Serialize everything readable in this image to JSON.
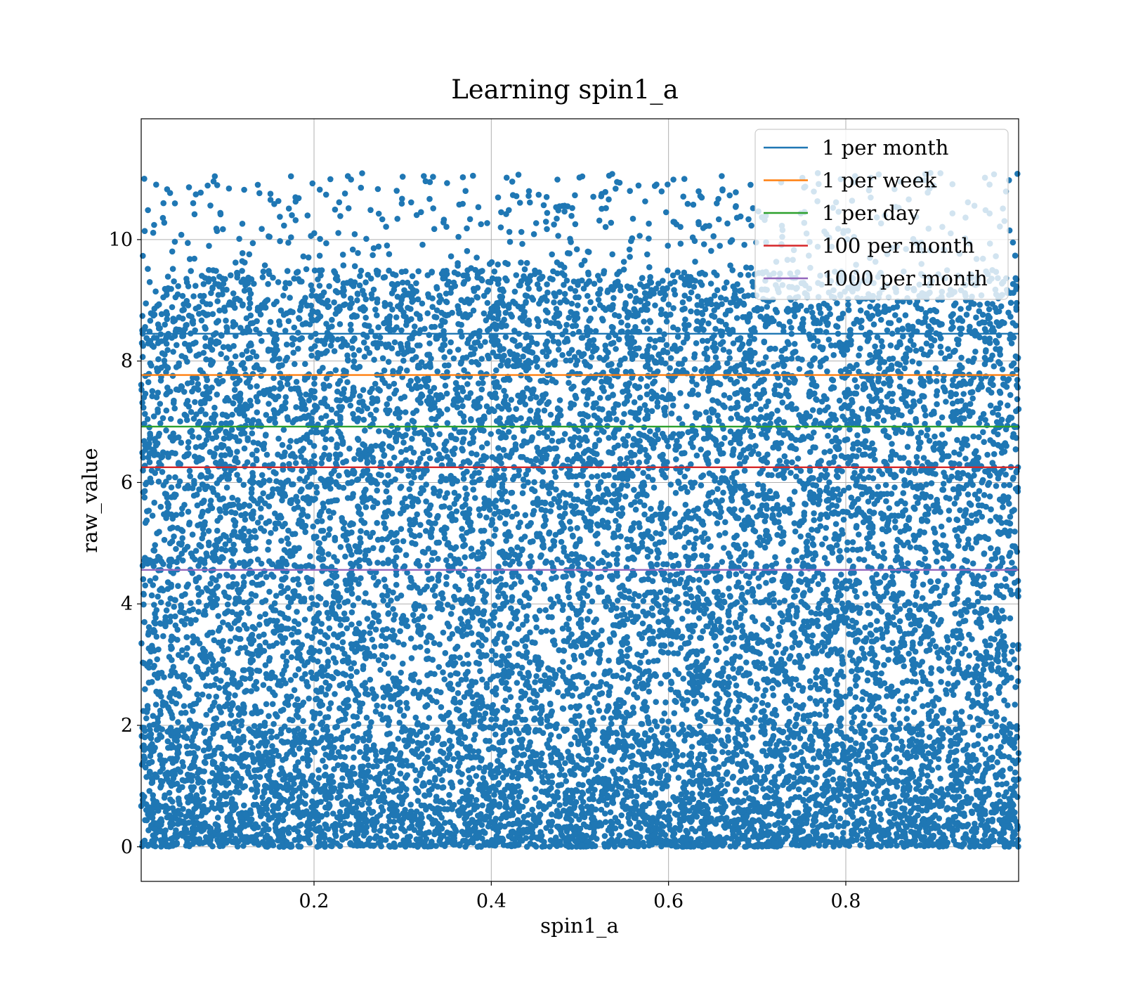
{
  "chart_data": {
    "type": "scatter",
    "title": "Learning spin1_a",
    "xlabel": "spin1_a",
    "ylabel": "raw_value",
    "xlim": [
      0.005,
      0.995
    ],
    "ylim": [
      -0.57,
      11.99
    ],
    "xticks": [
      0.2,
      0.4,
      0.6,
      0.8
    ],
    "xtick_labels": [
      "0.2",
      "0.4",
      "0.6",
      "0.8"
    ],
    "yticks": [
      0,
      2,
      4,
      6,
      8,
      10
    ],
    "ytick_labels": [
      "0",
      "2",
      "4",
      "6",
      "8",
      "10"
    ],
    "grid": true,
    "legend_position": "top-right",
    "scatter": {
      "color": "#1f77b4",
      "approx_point_count": 14000,
      "x_range": [
        0.005,
        0.995
      ],
      "y_range": [
        0.0,
        11.1
      ],
      "note_dense_band": [
        0.0,
        2.0
      ]
    },
    "series": [
      {
        "name": "1 per month",
        "type": "hline",
        "y": 8.45,
        "color": "#1f77b4"
      },
      {
        "name": "1 per week",
        "type": "hline",
        "y": 7.77,
        "color": "#ff7f0e"
      },
      {
        "name": "1 per day",
        "type": "hline",
        "y": 6.92,
        "color": "#2ca02c"
      },
      {
        "name": "100 per month",
        "type": "hline",
        "y": 6.25,
        "color": "#d62728"
      },
      {
        "name": "1000 per month",
        "type": "hline",
        "y": 4.56,
        "color": "#9467bd"
      }
    ]
  }
}
